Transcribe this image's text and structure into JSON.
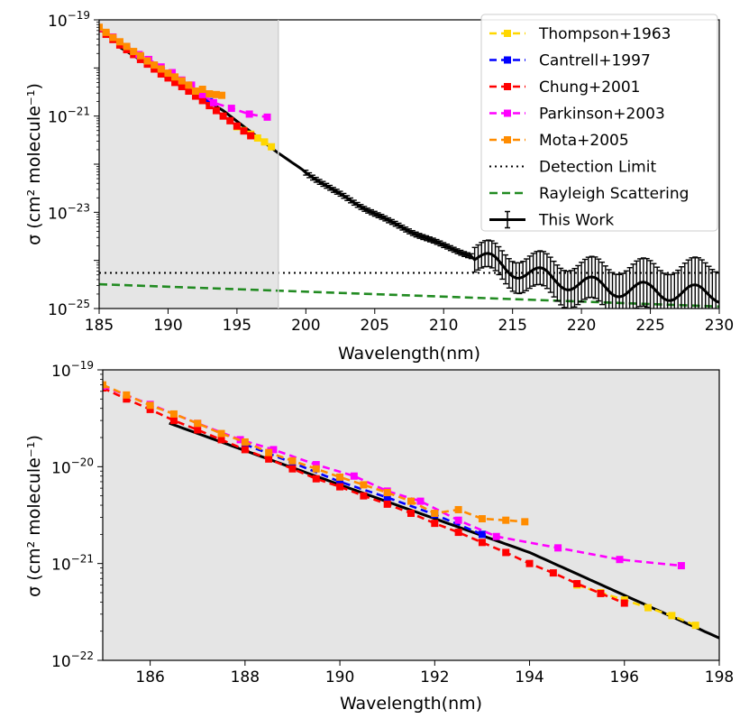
{
  "chart_data": [
    {
      "type": "line",
      "panel": "top",
      "xlabel": "Wavelength(nm)",
      "ylabel": "σ (cm² molecule⁻¹)",
      "yscale": "log",
      "xlim": [
        185,
        230
      ],
      "ylim_exp": [
        -25,
        -19
      ],
      "xticks": [
        185,
        190,
        195,
        200,
        205,
        210,
        215,
        220,
        225,
        230
      ],
      "yticks_exp": [
        -25,
        -23,
        -21,
        -19
      ],
      "shaded_region": [
        185,
        198
      ],
      "legend_position": "upper right",
      "series": [
        {
          "name": "Thompson+1963",
          "color": "#ffd700",
          "style": "dashed-square",
          "x": [
            195.0,
            195.5,
            196.0,
            196.5,
            197.0,
            197.5
          ],
          "y": [
            6e-22,
            5e-22,
            4.2e-22,
            3.5e-22,
            2.9e-22,
            2.3e-22
          ]
        },
        {
          "name": "Cantrell+1997",
          "color": "#0000ff",
          "style": "dashed-square",
          "x": [
            188,
            189,
            190,
            191,
            192,
            193
          ],
          "y": [
            1.7e-20,
            1.1e-20,
            7e-21,
            4.8e-21,
            3.2e-21,
            2e-21
          ]
        },
        {
          "name": "Chung+2001",
          "color": "#ff0000",
          "style": "dashed-square",
          "x": [
            185.0,
            185.5,
            186.0,
            186.5,
            187.0,
            187.5,
            188.0,
            188.5,
            189.0,
            189.5,
            190.0,
            190.5,
            191.0,
            191.5,
            192.0,
            192.5,
            193.0,
            193.5,
            194.0,
            194.5,
            195.0,
            195.5,
            196.0
          ],
          "y": [
            6.5e-20,
            5e-20,
            3.9e-20,
            3e-20,
            2.4e-20,
            1.9e-20,
            1.5e-20,
            1.2e-20,
            9.5e-21,
            7.5e-21,
            6.2e-21,
            5e-21,
            4.1e-21,
            3.3e-21,
            2.6e-21,
            2.1e-21,
            1.65e-21,
            1.3e-21,
            1e-21,
            8e-22,
            6.2e-22,
            4.9e-22,
            3.9e-22
          ]
        },
        {
          "name": "Parkinson+2003",
          "color": "#ff00ff",
          "style": "dashed-square",
          "x": [
            185.0,
            186.0,
            187.0,
            187.9,
            188.6,
            189.5,
            190.3,
            191.0,
            191.7,
            192.5,
            193.3,
            194.6,
            195.9,
            197.2
          ],
          "y": [
            6.8e-20,
            4.4e-20,
            2.8e-20,
            1.9e-20,
            1.5e-20,
            1.05e-20,
            8e-21,
            5.6e-21,
            4.4e-21,
            2.8e-21,
            1.9e-21,
            1.45e-21,
            1.1e-21,
            9.5e-22
          ]
        },
        {
          "name": "Mota+2005",
          "color": "#ff8c00",
          "style": "dashed-square",
          "x": [
            185.0,
            185.5,
            186.0,
            186.5,
            187.0,
            187.5,
            188.0,
            188.5,
            189.0,
            189.5,
            190.0,
            190.5,
            191.0,
            191.5,
            192.0,
            192.5,
            193.0,
            193.5,
            193.9
          ],
          "y": [
            7e-20,
            5.5e-20,
            4.3e-20,
            3.5e-20,
            2.8e-20,
            2.2e-20,
            1.8e-20,
            1.4e-20,
            1.15e-20,
            9.5e-21,
            7.8e-21,
            6.5e-21,
            5.4e-21,
            4.4e-21,
            3.3e-21,
            3.6e-21,
            2.9e-21,
            2.8e-21,
            2.7e-21
          ]
        },
        {
          "name": "Detection Limit",
          "color": "#000000",
          "style": "dotted",
          "x": [
            185,
            230
          ],
          "y": [
            5.5e-25,
            5.5e-25
          ]
        },
        {
          "name": "Rayleigh Scattering",
          "color": "#228b22",
          "style": "dashed",
          "x": [
            185,
            230
          ],
          "y": [
            3.2e-25,
            1.1e-25
          ]
        },
        {
          "name": "This Work",
          "color": "#000000",
          "style": "solid-errorbars",
          "x": [
            186.5,
            190,
            194,
            198,
            202,
            206,
            210,
            214,
            218,
            222,
            226,
            230
          ],
          "y": [
            2.7e-20,
            6.5e-21,
            1.3e-21,
            1.7e-22,
            2.8e-23,
            6.5e-24,
            2e-24,
            8e-25,
            4e-25,
            2.7e-25,
            2.2e-25,
            2e-25
          ]
        }
      ]
    },
    {
      "type": "line",
      "panel": "bottom",
      "xlabel": "Wavelength(nm)",
      "ylabel": "σ (cm² molecule⁻¹)",
      "yscale": "log",
      "xlim": [
        185,
        198
      ],
      "ylim_exp": [
        -22,
        -19
      ],
      "xticks": [
        186,
        188,
        190,
        192,
        194,
        196,
        198
      ],
      "yticks_exp": [
        -22,
        -21,
        -20,
        -19
      ],
      "shaded_region": [
        185,
        198
      ]
    }
  ]
}
